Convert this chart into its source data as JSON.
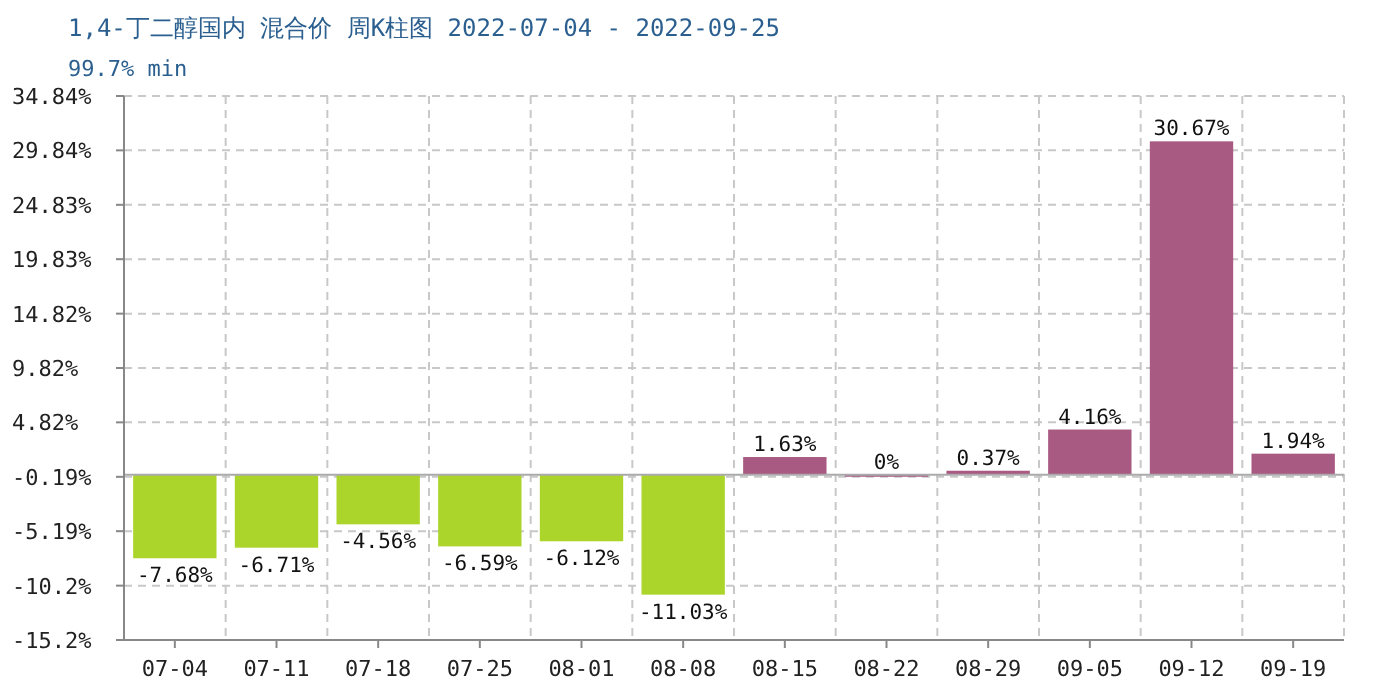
{
  "chart_data": {
    "type": "bar",
    "title": "1,4-丁二醇国内 混合价 周K柱图 2022-07-04 - 2022-09-25",
    "subtitle": "99.7% min",
    "categories": [
      "07-04",
      "07-11",
      "07-18",
      "07-25",
      "08-01",
      "08-08",
      "08-15",
      "08-22",
      "08-29",
      "09-05",
      "09-12",
      "09-19"
    ],
    "values": [
      -7.68,
      -6.71,
      -4.56,
      -6.59,
      -6.12,
      -11.03,
      1.63,
      0,
      0.37,
      4.16,
      30.67,
      1.94
    ],
    "colors": [
      "#acd52c",
      "#acd52c",
      "#acd52c",
      "#acd52c",
      "#acd52c",
      "#acd52c",
      "#a85a82",
      "#a85a82",
      "#a85a82",
      "#a85a82",
      "#a85a82",
      "#a85a82"
    ],
    "value_labels": [
      "-7.68%",
      "-6.71%",
      "-4.56%",
      "-6.59%",
      "-6.12%",
      "-11.03%",
      "1.63%",
      "0%",
      "0.37%",
      "4.16%",
      "30.67%",
      "1.94%"
    ],
    "ylim": [
      -15.2,
      34.84
    ],
    "yticks": [
      {
        "value": -15.2,
        "label": "-15.2%"
      },
      {
        "value": -10.2,
        "label": "-10.2%"
      },
      {
        "value": -5.19,
        "label": "-5.19%"
      },
      {
        "value": -0.19,
        "label": "-0.19%"
      },
      {
        "value": 4.82,
        "label": "4.82%"
      },
      {
        "value": 9.82,
        "label": "9.82%"
      },
      {
        "value": 14.82,
        "label": "14.82%"
      },
      {
        "value": 19.83,
        "label": "19.83%"
      },
      {
        "value": 24.83,
        "label": "24.83%"
      },
      {
        "value": 29.84,
        "label": "29.84%"
      },
      {
        "value": 34.84,
        "label": "34.84%"
      }
    ],
    "grid": true
  }
}
